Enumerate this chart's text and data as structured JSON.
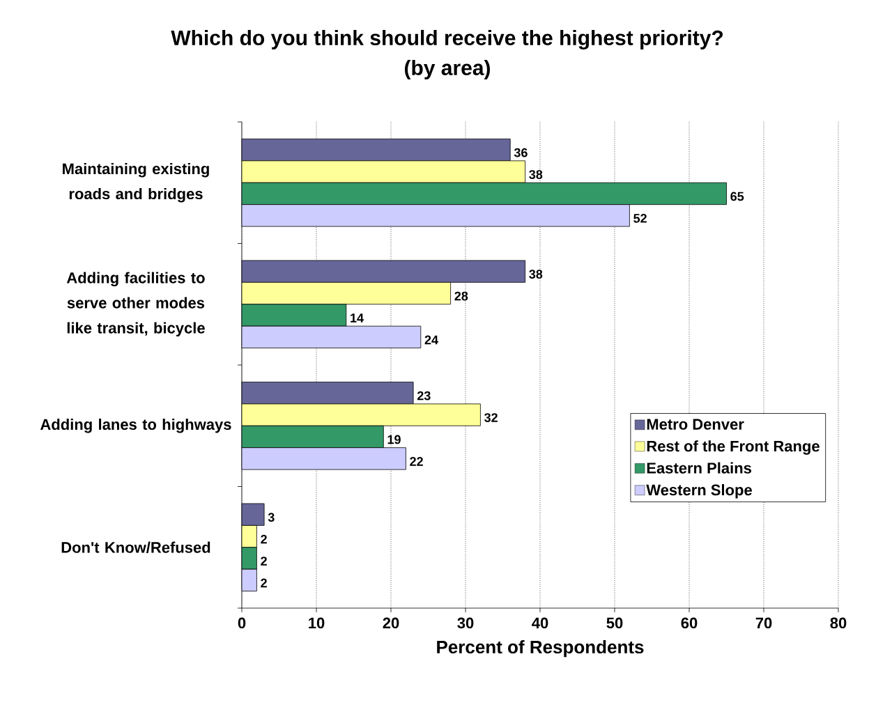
{
  "chart_data": {
    "type": "bar",
    "orientation": "horizontal",
    "title": "Which do you think should receive the highest priority?",
    "subtitle": "(by area)",
    "xlabel": "Percent of Respondents",
    "categories": [
      "Maintaining existing roads and bridges",
      "Adding facilities to serve other modes like transit, bicycle",
      "Adding lanes to highways",
      "Don't Know/Refused"
    ],
    "series": [
      {
        "name": "Metro Denver",
        "color": "#666699",
        "values": [
          36,
          38,
          23,
          3
        ]
      },
      {
        "name": "Rest of the Front Range",
        "color": "#ffff99",
        "values": [
          38,
          28,
          32,
          2
        ]
      },
      {
        "name": "Eastern Plains",
        "color": "#339966",
        "values": [
          65,
          14,
          19,
          2
        ]
      },
      {
        "name": "Western Slope",
        "color": "#ccccff",
        "values": [
          52,
          24,
          22,
          2
        ]
      }
    ],
    "xlim": [
      0,
      80
    ],
    "xticks": [
      0,
      10,
      20,
      30,
      40,
      50,
      60,
      70,
      80
    ],
    "grid": "x",
    "legend": "right",
    "data_labels": true
  }
}
